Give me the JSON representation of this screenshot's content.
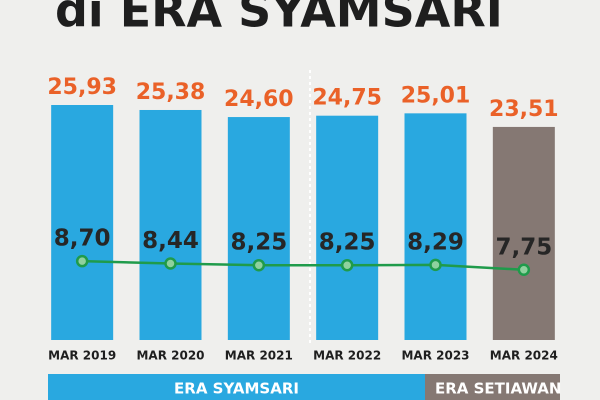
{
  "chart_data": {
    "type": "bar",
    "title": "di ERA SYAMSARI",
    "categories": [
      "MAR 2019",
      "MAR 2020",
      "MAR 2021",
      "MAR 2022",
      "MAR 2023",
      "MAR 2024"
    ],
    "series": [
      {
        "type": "bar",
        "colors": [
          "#29a8e0",
          "#29a8e0",
          "#29a8e0",
          "#29a8e0",
          "#29a8e0",
          "#857873"
        ],
        "label_color": "#ea6128",
        "values": [
          25.93,
          25.38,
          24.6,
          24.75,
          25.01,
          23.51
        ],
        "value_labels": [
          "25,93",
          "25,38",
          "24,60",
          "24,75",
          "25,01",
          "23,51"
        ]
      },
      {
        "type": "line",
        "color": "#1f9b4b",
        "label_color": "#262626",
        "values": [
          8.7,
          8.44,
          8.25,
          8.25,
          8.29,
          7.75
        ],
        "value_labels": [
          "8,70",
          "8,44",
          "8,25",
          "8,25",
          "8,29",
          "7,75"
        ]
      }
    ],
    "era_bands": [
      {
        "label": "ERA SYAMSARI",
        "color": "#29a8e0"
      },
      {
        "label": "ERA SETIAWAN",
        "color": "#857873"
      }
    ]
  }
}
